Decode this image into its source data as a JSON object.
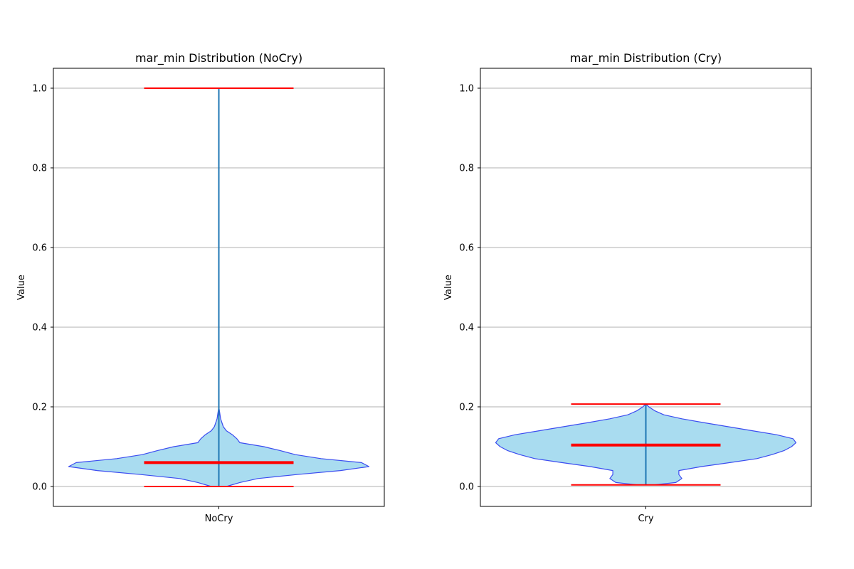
{
  "chart_data": [
    {
      "type": "violin",
      "title": "mar_min Distribution (NoCry)",
      "xlabel": "",
      "ylabel": "Value",
      "categories": [
        "NoCry"
      ],
      "ylim": [
        -0.05,
        1.05
      ],
      "yticks": [
        0.0,
        0.2,
        0.4,
        0.6,
        0.8,
        1.0
      ],
      "ytick_labels": [
        "0.0",
        "0.2",
        "0.4",
        "0.6",
        "0.8",
        "1.0"
      ],
      "grid": "horizontal",
      "stats": {
        "min": 0.0,
        "max": 1.0,
        "median": 0.06
      },
      "density_profile": [
        {
          "y": 0.0,
          "w": 0.05
        },
        {
          "y": 0.01,
          "w": 0.14
        },
        {
          "y": 0.02,
          "w": 0.26
        },
        {
          "y": 0.03,
          "w": 0.52
        },
        {
          "y": 0.04,
          "w": 0.81
        },
        {
          "y": 0.05,
          "w": 1.0
        },
        {
          "y": 0.06,
          "w": 0.95
        },
        {
          "y": 0.07,
          "w": 0.68
        },
        {
          "y": 0.08,
          "w": 0.51
        },
        {
          "y": 0.09,
          "w": 0.41
        },
        {
          "y": 0.1,
          "w": 0.3
        },
        {
          "y": 0.11,
          "w": 0.14
        },
        {
          "y": 0.12,
          "w": 0.12
        },
        {
          "y": 0.13,
          "w": 0.09
        },
        {
          "y": 0.14,
          "w": 0.05
        },
        {
          "y": 0.15,
          "w": 0.03
        },
        {
          "y": 0.17,
          "w": 0.012
        },
        {
          "y": 0.2,
          "w": 0.0
        }
      ]
    },
    {
      "type": "violin",
      "title": "mar_min Distribution (Cry)",
      "xlabel": "",
      "ylabel": "Value",
      "categories": [
        "Cry"
      ],
      "ylim": [
        -0.05,
        1.05
      ],
      "yticks": [
        0.0,
        0.2,
        0.4,
        0.6,
        0.8,
        1.0
      ],
      "ytick_labels": [
        "0.0",
        "0.2",
        "0.4",
        "0.6",
        "0.8",
        "1.0"
      ],
      "grid": "horizontal",
      "stats": {
        "min": 0.004,
        "max": 0.207,
        "median": 0.104
      },
      "density_profile": [
        {
          "y": 0.004,
          "w": 0.05
        },
        {
          "y": 0.01,
          "w": 0.2
        },
        {
          "y": 0.02,
          "w": 0.24
        },
        {
          "y": 0.03,
          "w": 0.22
        },
        {
          "y": 0.04,
          "w": 0.22
        },
        {
          "y": 0.05,
          "w": 0.37
        },
        {
          "y": 0.06,
          "w": 0.56
        },
        {
          "y": 0.07,
          "w": 0.74
        },
        {
          "y": 0.08,
          "w": 0.84
        },
        {
          "y": 0.09,
          "w": 0.92
        },
        {
          "y": 0.1,
          "w": 0.97
        },
        {
          "y": 0.11,
          "w": 1.0
        },
        {
          "y": 0.12,
          "w": 0.98
        },
        {
          "y": 0.13,
          "w": 0.87
        },
        {
          "y": 0.14,
          "w": 0.71
        },
        {
          "y": 0.15,
          "w": 0.55
        },
        {
          "y": 0.16,
          "w": 0.39
        },
        {
          "y": 0.17,
          "w": 0.24
        },
        {
          "y": 0.18,
          "w": 0.12
        },
        {
          "y": 0.19,
          "w": 0.06
        },
        {
          "y": 0.2,
          "w": 0.02
        },
        {
          "y": 0.207,
          "w": 0.0
        }
      ]
    }
  ],
  "colors": {
    "violin_fill": "#a9dcf0",
    "violin_edge": "#3b4cf0",
    "center_line": "#1f77b4",
    "extrema": "#ff0000",
    "median": "#ff0000",
    "grid": "#b0b0b0",
    "axes": "#000000"
  }
}
